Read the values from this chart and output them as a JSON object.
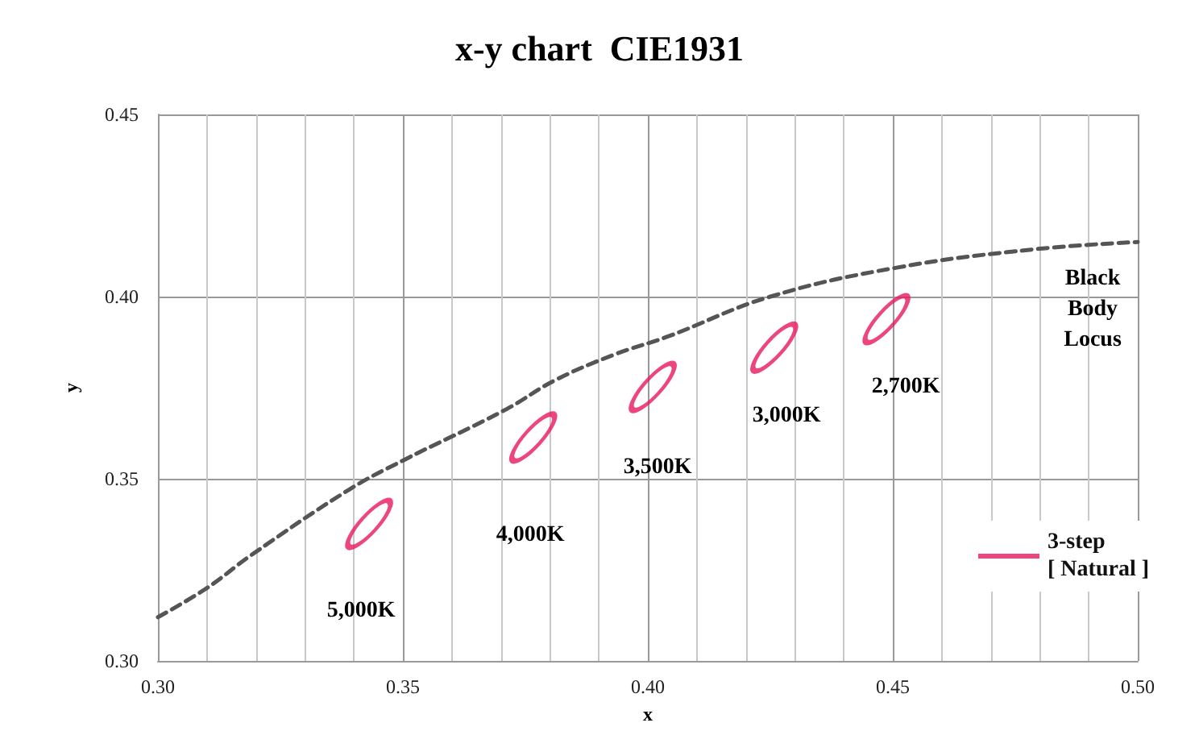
{
  "chart_data": {
    "type": "line",
    "title": "x-y chart  CIE1931",
    "xlabel": "x",
    "ylabel": "y",
    "xlim": [
      0.3,
      0.5
    ],
    "ylim": [
      0.3,
      0.45
    ],
    "xticks": [
      {
        "value": 0.3,
        "label": "0.30"
      },
      {
        "value": 0.35,
        "label": "0.35"
      },
      {
        "value": 0.4,
        "label": "0.40"
      },
      {
        "value": 0.45,
        "label": "0.45"
      },
      {
        "value": 0.5,
        "label": "0.50"
      }
    ],
    "yticks": [
      {
        "value": 0.3,
        "label": "0.30"
      },
      {
        "value": 0.35,
        "label": "0.35"
      },
      {
        "value": 0.4,
        "label": "0.40"
      },
      {
        "value": 0.45,
        "label": "0.45"
      }
    ],
    "grid": true,
    "legend": "right",
    "marker": "none",
    "series": [
      {
        "type": "scatter",
        "name": "3-step\n[ Natural ]",
        "color": "#e8175d",
        "x": [
          0.3431,
          0.3766,
          0.401,
          0.4258,
          0.4487
        ],
        "values": [
          0.3376,
          0.3613,
          0.3752,
          0.386,
          0.3938
        ]
      },
      {
        "color": "#555555",
        "line_style": "dashed",
        "x": [
          0.3,
          0.31,
          0.319,
          0.339,
          0.35,
          0.371,
          0.381,
          0.393,
          0.404,
          0.425,
          0.451,
          0.479,
          0.5
        ],
        "values": [
          0.312,
          0.32,
          0.329,
          0.347,
          0.355,
          0.369,
          0.377,
          0.384,
          0.389,
          0.4,
          0.408,
          0.413,
          0.415
        ]
      }
    ],
    "annotations": [
      "5,000K",
      "4,000K",
      "3,500K",
      "3,000K",
      "2,700K",
      "Black\nBody\nLocus"
    ]
  }
}
